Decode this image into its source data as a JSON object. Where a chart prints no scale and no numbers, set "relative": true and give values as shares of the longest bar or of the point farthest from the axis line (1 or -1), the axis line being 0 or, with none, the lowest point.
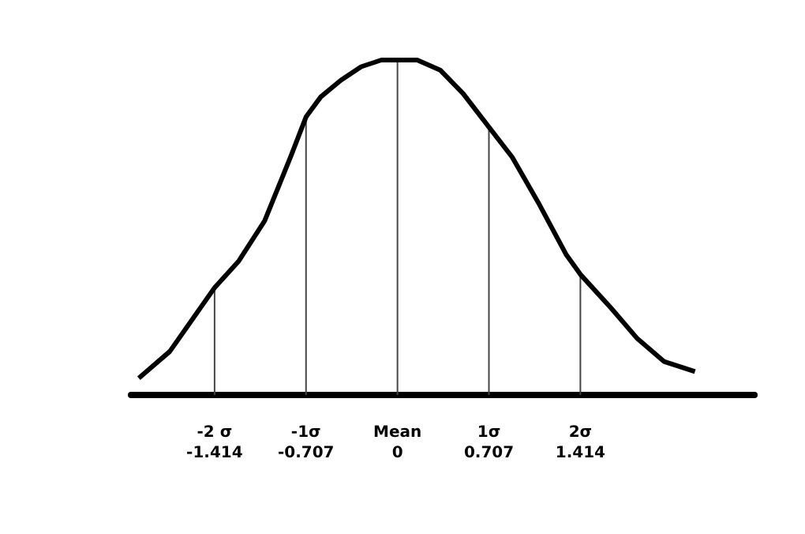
{
  "chart_data": {
    "type": "line",
    "relative": true,
    "color": "#000000",
    "marker": "none",
    "x": [
      -2.0,
      -1.76,
      -1.56,
      -1.414,
      -1.227,
      -1.027,
      -0.827,
      -0.707,
      -0.593,
      -0.437,
      -0.281,
      -0.125,
      0,
      0.153,
      0.33,
      0.507,
      0.707,
      0.887,
      1.095,
      1.303,
      1.414,
      1.65,
      1.85,
      2.06,
      2.3
    ],
    "values": [
      0.05,
      0.13,
      0.24,
      0.32,
      0.4,
      0.52,
      0.71,
      0.83,
      0.89,
      0.94,
      0.98,
      1,
      1,
      1,
      0.97,
      0.9,
      0.8,
      0.71,
      0.57,
      0.42,
      0.36,
      0.26,
      0.17,
      0.1,
      0.07
    ],
    "xlim": [
      -2.06,
      2.76
    ],
    "xticks": [
      -1.414,
      -0.707,
      0,
      0.707,
      1.414
    ],
    "ref_lines": [
      {
        "axis": "x",
        "value": -1.414,
        "label": "-2 σ"
      },
      {
        "axis": "x",
        "value": -0.707,
        "label": "-1σ"
      },
      {
        "axis": "x",
        "value": 0,
        "label": "Mean"
      },
      {
        "axis": "x",
        "value": 0.707,
        "label": "1σ"
      },
      {
        "axis": "x",
        "value": 1.414,
        "label": "2σ"
      }
    ],
    "grid": false
  }
}
